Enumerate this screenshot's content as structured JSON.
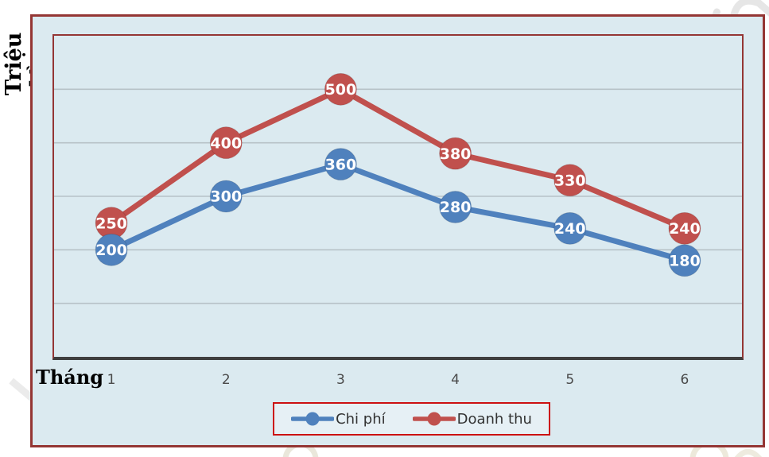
{
  "chart": {
    "y_axis_title": "Triệu đồng",
    "x_axis_title": "Tháng",
    "background": "#dbeaf0",
    "outer_border_color": "#943634",
    "plot_border_color": "#943634",
    "axis_line_color": "#3f3f3f",
    "gridline_color": "#b7c2c7",
    "data_label_color": "#ffffff"
  },
  "legend": {
    "border_color": "#cc1111",
    "items": [
      {
        "label": "Chi phí",
        "color": "#4f81bd"
      },
      {
        "label": "Doanh thu",
        "color": "#c0504d"
      }
    ]
  },
  "chart_data": {
    "type": "line",
    "title": "",
    "xlabel": "Tháng",
    "ylabel": "Triệu đồng",
    "categories": [
      "1",
      "2",
      "3",
      "4",
      "5",
      "6"
    ],
    "series": [
      {
        "name": "Chi phí",
        "color": "#4f81bd",
        "values": [
          200,
          300,
          360,
          280,
          240,
          180
        ]
      },
      {
        "name": "Doanh thu",
        "color": "#c0504d",
        "values": [
          250,
          400,
          500,
          380,
          330,
          240
        ]
      }
    ],
    "ylim": [
      0,
      600
    ],
    "grid": true,
    "gridline_values": [
      100,
      200,
      300,
      400,
      500
    ],
    "legend_position": "bottom",
    "data_labels": "inside-marker",
    "marker_radius": 20,
    "line_width": 7
  }
}
